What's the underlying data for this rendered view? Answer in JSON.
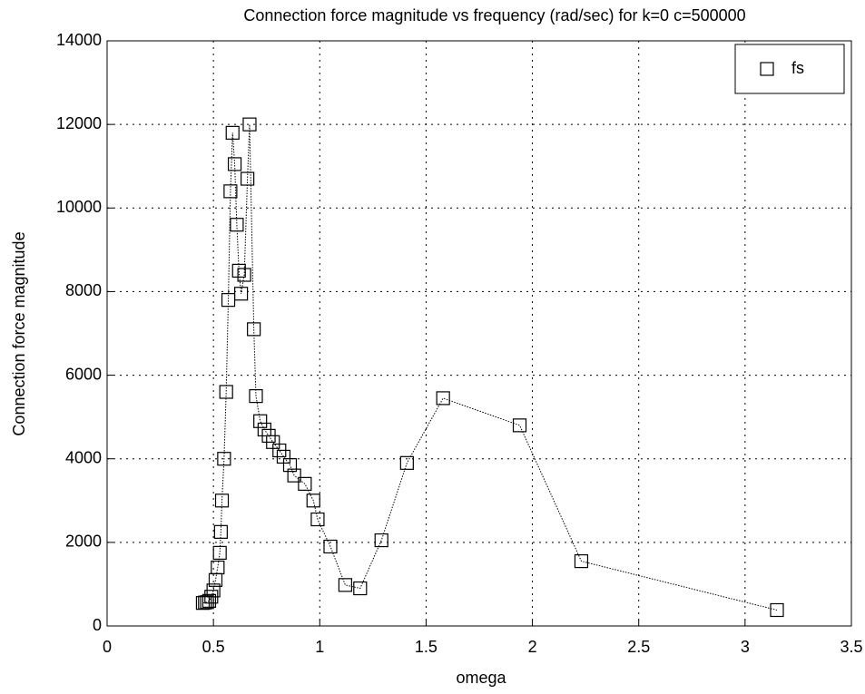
{
  "chart_data": {
    "type": "line",
    "title": "Connection force magnitude vs frequency (rad/sec) for k=0 c=500000",
    "x_label": "omega",
    "y_label": "Connection force magnitude",
    "x": [
      0.45,
      0.46,
      0.47,
      0.48,
      0.49,
      0.5,
      0.51,
      0.52,
      0.53,
      0.535,
      0.54,
      0.55,
      0.56,
      0.57,
      0.58,
      0.59,
      0.6,
      0.61,
      0.62,
      0.63,
      0.645,
      0.66,
      0.67,
      0.69,
      0.7,
      0.72,
      0.74,
      0.76,
      0.78,
      0.81,
      0.83,
      0.86,
      0.88,
      0.93,
      0.97,
      0.99,
      1.05,
      1.12,
      1.19,
      1.29,
      1.41,
      1.58,
      1.94,
      2.23,
      3.15
    ],
    "series": [
      {
        "name": "fs",
        "color": "#000000",
        "values": [
          550,
          560,
          570,
          600,
          700,
          850,
          1100,
          1400,
          1750,
          2250,
          3000,
          4000,
          5600,
          7800,
          10400,
          11800,
          11050,
          9600,
          8500,
          7950,
          8400,
          10700,
          12000,
          7100,
          5500,
          4900,
          4700,
          4550,
          4400,
          4200,
          4050,
          3850,
          3600,
          3400,
          3000,
          2550,
          1900,
          980,
          900,
          2050,
          3900,
          5450,
          4800,
          1550,
          380
        ]
      }
    ],
    "xlim": [
      0,
      3.5
    ],
    "xticks": [
      0,
      0.5,
      1,
      1.5,
      2,
      2.5,
      3,
      3.5
    ],
    "ylim": [
      0,
      14000
    ],
    "yticks": [
      0,
      2000,
      4000,
      6000,
      8000,
      10000,
      12000,
      14000
    ],
    "grid": true,
    "legend": "top-right"
  }
}
